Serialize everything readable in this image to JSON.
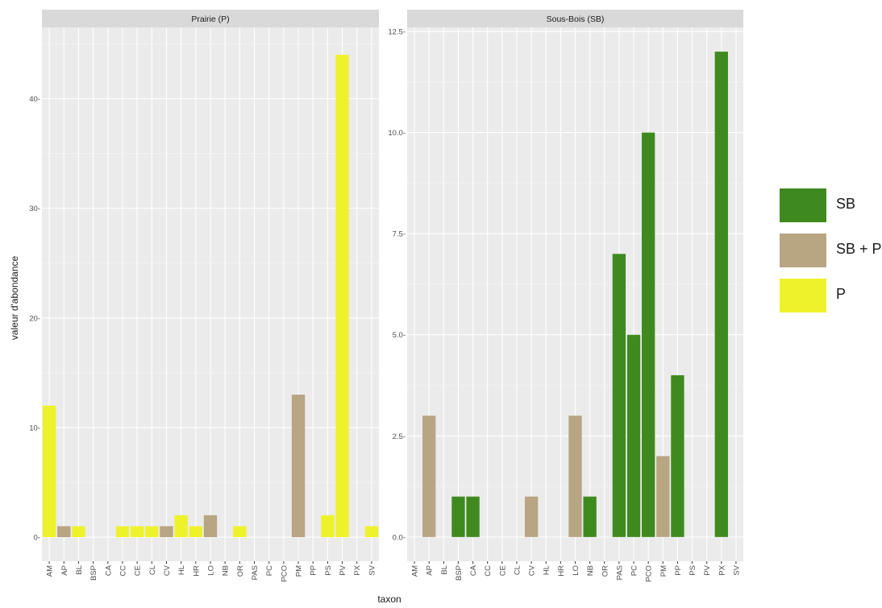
{
  "chart_data": {
    "type": "bar",
    "xlabel": "taxon",
    "ylabel": "valeur d'abondance",
    "colors": {
      "SB": "#3f8a1f",
      "SB + P": "#b8a582",
      "P": "#eef22b"
    },
    "legend": {
      "position": "right",
      "entries": [
        {
          "label": "SB",
          "color": "#3f8a1f"
        },
        {
          "label": "SB + P",
          "color": "#b8a582"
        },
        {
          "label": "P",
          "color": "#eef22b"
        }
      ]
    },
    "categories": [
      "AM",
      "AP",
      "BL",
      "BSP",
      "CA",
      "CC",
      "CE",
      "CL",
      "CV",
      "HL",
      "HR",
      "LO",
      "NB",
      "OR",
      "PAS",
      "PC",
      "PCO",
      "PM",
      "PP",
      "PS",
      "PV",
      "PX",
      "SV"
    ],
    "panels": [
      {
        "title": "Prairie (P)",
        "ylim": [
          -2.2,
          46.5
        ],
        "yticks": [
          0,
          10,
          20,
          30,
          40
        ],
        "ytick_labels": [
          "0-",
          "10-",
          "20-",
          "30-",
          "40-"
        ],
        "bars": [
          {
            "taxon": "AM",
            "value": 12,
            "group": "P"
          },
          {
            "taxon": "AP",
            "value": 1,
            "group": "SB + P"
          },
          {
            "taxon": "BL",
            "value": 1,
            "group": "P"
          },
          {
            "taxon": "CC",
            "value": 1,
            "group": "P"
          },
          {
            "taxon": "CE",
            "value": 1,
            "group": "P"
          },
          {
            "taxon": "CL",
            "value": 1,
            "group": "P"
          },
          {
            "taxon": "CV",
            "value": 1,
            "group": "SB + P"
          },
          {
            "taxon": "HL",
            "value": 2,
            "group": "P"
          },
          {
            "taxon": "HR",
            "value": 1,
            "group": "P"
          },
          {
            "taxon": "LO",
            "value": 2,
            "group": "SB + P"
          },
          {
            "taxon": "OR",
            "value": 1,
            "group": "P"
          },
          {
            "taxon": "PM",
            "value": 13,
            "group": "SB + P"
          },
          {
            "taxon": "PS",
            "value": 2,
            "group": "P"
          },
          {
            "taxon": "PV",
            "value": 44,
            "group": "P"
          },
          {
            "taxon": "SV",
            "value": 1,
            "group": "P"
          }
        ]
      },
      {
        "title": "Sous-Bois (SB)",
        "ylim": [
          -0.6,
          12.6
        ],
        "yticks": [
          0,
          2.5,
          5,
          7.5,
          10,
          12.5
        ],
        "ytick_labels": [
          "0.0-",
          "2.5-",
          "5.0-",
          "7.5-",
          "10.0-",
          "12.5-"
        ],
        "bars": [
          {
            "taxon": "AP",
            "value": 3,
            "group": "SB + P"
          },
          {
            "taxon": "BSP",
            "value": 1,
            "group": "SB"
          },
          {
            "taxon": "CA",
            "value": 1,
            "group": "SB"
          },
          {
            "taxon": "CV",
            "value": 1,
            "group": "SB + P"
          },
          {
            "taxon": "LO",
            "value": 3,
            "group": "SB + P"
          },
          {
            "taxon": "NB",
            "value": 1,
            "group": "SB"
          },
          {
            "taxon": "PAS",
            "value": 7,
            "group": "SB"
          },
          {
            "taxon": "PC",
            "value": 5,
            "group": "SB"
          },
          {
            "taxon": "PCO",
            "value": 10,
            "group": "SB"
          },
          {
            "taxon": "PM",
            "value": 2,
            "group": "SB + P"
          },
          {
            "taxon": "PP",
            "value": 4,
            "group": "SB"
          },
          {
            "taxon": "PX",
            "value": 12,
            "group": "SB"
          }
        ]
      }
    ]
  }
}
